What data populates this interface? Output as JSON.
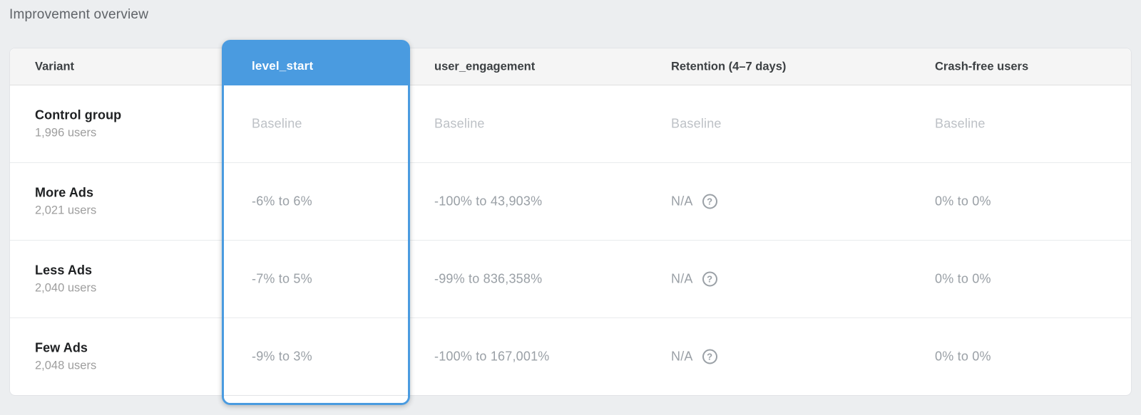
{
  "page": {
    "title": "Improvement overview"
  },
  "colors": {
    "accent_blue": "#4a9be0",
    "header_bg": "#f5f5f5",
    "value_gray": "#9aa0a6",
    "baseline_gray": "#bdc1c6"
  },
  "table": {
    "columns": [
      {
        "id": "variant",
        "label": "Variant"
      },
      {
        "id": "level_start",
        "label": "level_start",
        "highlighted": true
      },
      {
        "id": "user_engagement",
        "label": "user_engagement"
      },
      {
        "id": "retention",
        "label": "Retention (4–7 days)"
      },
      {
        "id": "crash_free",
        "label": "Crash-free users"
      }
    ],
    "help_icon": "?",
    "rows": [
      {
        "variant": "Control group",
        "users": "1,996 users",
        "level_start": "Baseline",
        "user_engagement": "Baseline",
        "retention": "Baseline",
        "crash_free": "Baseline"
      },
      {
        "variant": "More Ads",
        "users": "2,021 users",
        "level_start": "-6% to 6%",
        "user_engagement": "-100% to 43,903%",
        "retention": "N/A",
        "crash_free": "0% to 0%"
      },
      {
        "variant": "Less Ads",
        "users": "2,040 users",
        "level_start": "-7% to 5%",
        "user_engagement": "-99% to 836,358%",
        "retention": "N/A",
        "crash_free": "0% to 0%"
      },
      {
        "variant": "Few Ads",
        "users": "2,048 users",
        "level_start": "-9% to 3%",
        "user_engagement": "-100% to 167,001%",
        "retention": "N/A",
        "crash_free": "0% to 0%"
      }
    ]
  }
}
